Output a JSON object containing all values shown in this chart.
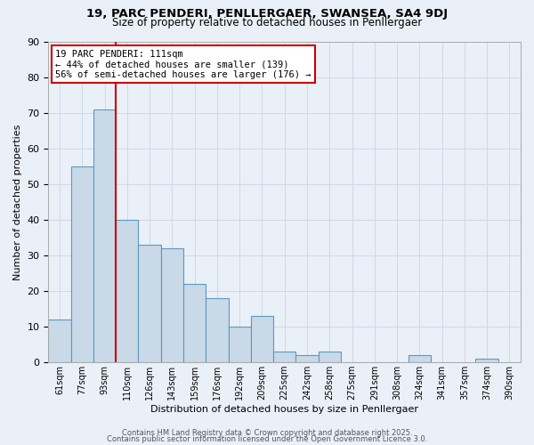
{
  "title1": "19, PARC PENDERI, PENLLERGAER, SWANSEA, SA4 9DJ",
  "title2": "Size of property relative to detached houses in Penllergaer",
  "xlabel": "Distribution of detached houses by size in Penllergaer",
  "ylabel": "Number of detached properties",
  "categories": [
    "61sqm",
    "77sqm",
    "93sqm",
    "110sqm",
    "126sqm",
    "143sqm",
    "159sqm",
    "176sqm",
    "192sqm",
    "209sqm",
    "225sqm",
    "242sqm",
    "258sqm",
    "275sqm",
    "291sqm",
    "308sqm",
    "324sqm",
    "341sqm",
    "357sqm",
    "374sqm",
    "390sqm"
  ],
  "values": [
    12,
    55,
    71,
    40,
    33,
    32,
    22,
    18,
    10,
    13,
    3,
    2,
    3,
    0,
    0,
    0,
    2,
    0,
    0,
    1,
    0
  ],
  "bar_color": "#c9d9e8",
  "bar_edge_color": "#5a9abf",
  "vline_index": 2.5,
  "vline_color": "#cc0000",
  "ylim": [
    0,
    90
  ],
  "yticks": [
    0,
    10,
    20,
    30,
    40,
    50,
    60,
    70,
    80,
    90
  ],
  "annotation_line1": "19 PARC PENDERI: 111sqm",
  "annotation_line2": "← 44% of detached houses are smaller (139)",
  "annotation_line3": "56% of semi-detached houses are larger (176) →",
  "annotation_box_color": "#ffffff",
  "annotation_box_edge": "#cc0000",
  "footer1": "Contains HM Land Registry data © Crown copyright and database right 2025.",
  "footer2": "Contains public sector information licensed under the Open Government Licence 3.0.",
  "grid_color": "#d0d8e8",
  "background_color": "#eaf0f8"
}
